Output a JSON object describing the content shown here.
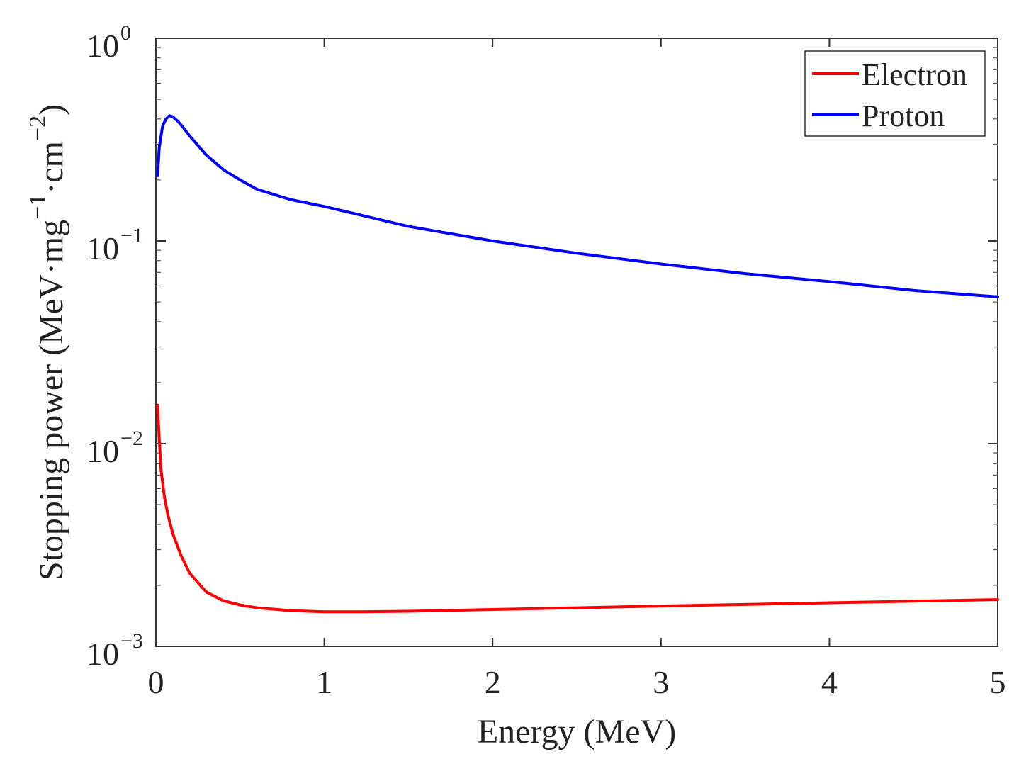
{
  "chart_data": {
    "type": "line",
    "title": "",
    "xlabel": "Energy (MeV)",
    "ylabel": {
      "prefix": "Stopping power (MeV·mg",
      "exp1": "−1",
      "middle": "·cm",
      "exp2": "−2",
      "suffix": ")"
    },
    "xlim": [
      0,
      5
    ],
    "ylim": [
      0.001,
      1
    ],
    "yscale": "log",
    "xticks": [
      {
        "value": 0,
        "label": "0"
      },
      {
        "value": 1,
        "label": "1"
      },
      {
        "value": 2,
        "label": "2"
      },
      {
        "value": 3,
        "label": "3"
      },
      {
        "value": 4,
        "label": "4"
      },
      {
        "value": 5,
        "label": "5"
      }
    ],
    "yticks": [
      {
        "value": 0.001,
        "base": "10",
        "exp": "−3"
      },
      {
        "value": 0.01,
        "base": "10",
        "exp": "−2"
      },
      {
        "value": 0.1,
        "base": "10",
        "exp": "−1"
      },
      {
        "value": 1,
        "base": "10",
        "exp": "0"
      }
    ],
    "grid": false,
    "legend_position": "top-right",
    "series": [
      {
        "name": "Electron",
        "color": "#ff0000",
        "x": [
          0.01,
          0.02,
          0.03,
          0.05,
          0.07,
          0.1,
          0.15,
          0.2,
          0.3,
          0.4,
          0.5,
          0.6,
          0.8,
          1.0,
          1.2,
          1.5,
          2.0,
          2.5,
          3.0,
          3.5,
          4.0,
          4.5,
          5.0
        ],
        "y": [
          0.0155,
          0.0105,
          0.0075,
          0.0055,
          0.0045,
          0.0036,
          0.0028,
          0.0023,
          0.00185,
          0.00168,
          0.0016,
          0.00155,
          0.0015,
          0.00148,
          0.00148,
          0.00149,
          0.00152,
          0.00155,
          0.00158,
          0.00161,
          0.00164,
          0.00167,
          0.0017
        ]
      },
      {
        "name": "Proton",
        "color": "#0000ff",
        "x": [
          0.01,
          0.02,
          0.04,
          0.06,
          0.08,
          0.1,
          0.13,
          0.16,
          0.2,
          0.3,
          0.4,
          0.5,
          0.6,
          0.8,
          1.0,
          1.5,
          2.0,
          2.5,
          3.0,
          3.5,
          4.0,
          4.5,
          5.0
        ],
        "y": [
          0.21,
          0.29,
          0.37,
          0.4,
          0.415,
          0.41,
          0.39,
          0.365,
          0.33,
          0.265,
          0.225,
          0.2,
          0.18,
          0.16,
          0.148,
          0.118,
          0.1,
          0.087,
          0.077,
          0.069,
          0.063,
          0.057,
          0.053
        ]
      }
    ]
  }
}
